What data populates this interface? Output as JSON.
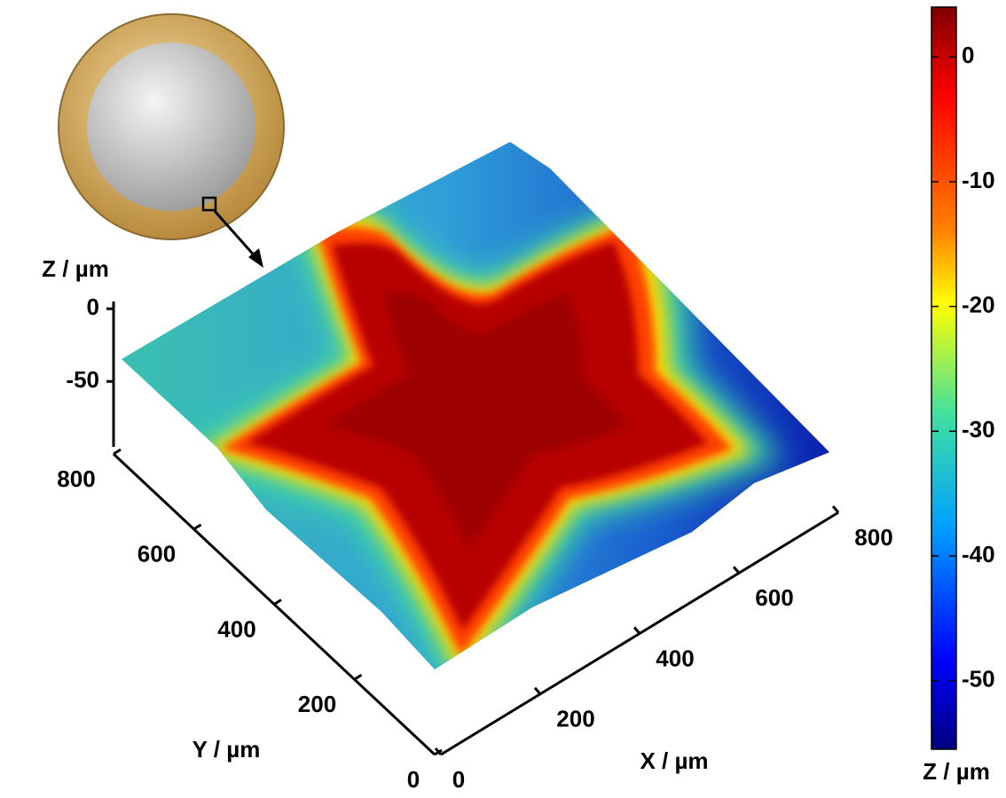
{
  "chart_data": {
    "type": "surface3d",
    "x_label": "X / µm",
    "y_label": "Y / µm",
    "z_label": "Z / µm",
    "xlim": [
      0,
      800
    ],
    "xticks": [
      0,
      200,
      400,
      600,
      800
    ],
    "ylim": [
      0,
      800
    ],
    "yticks": [
      0,
      200,
      400,
      600,
      800
    ],
    "zlim": [
      -95,
      5
    ],
    "zticks": [
      -50,
      0
    ],
    "colorbar": {
      "label": "Z / µm",
      "lim": [
        -55.5,
        4
      ],
      "ticks": [
        -50,
        -40,
        -30,
        -20,
        -10,
        0
      ]
    }
  }
}
